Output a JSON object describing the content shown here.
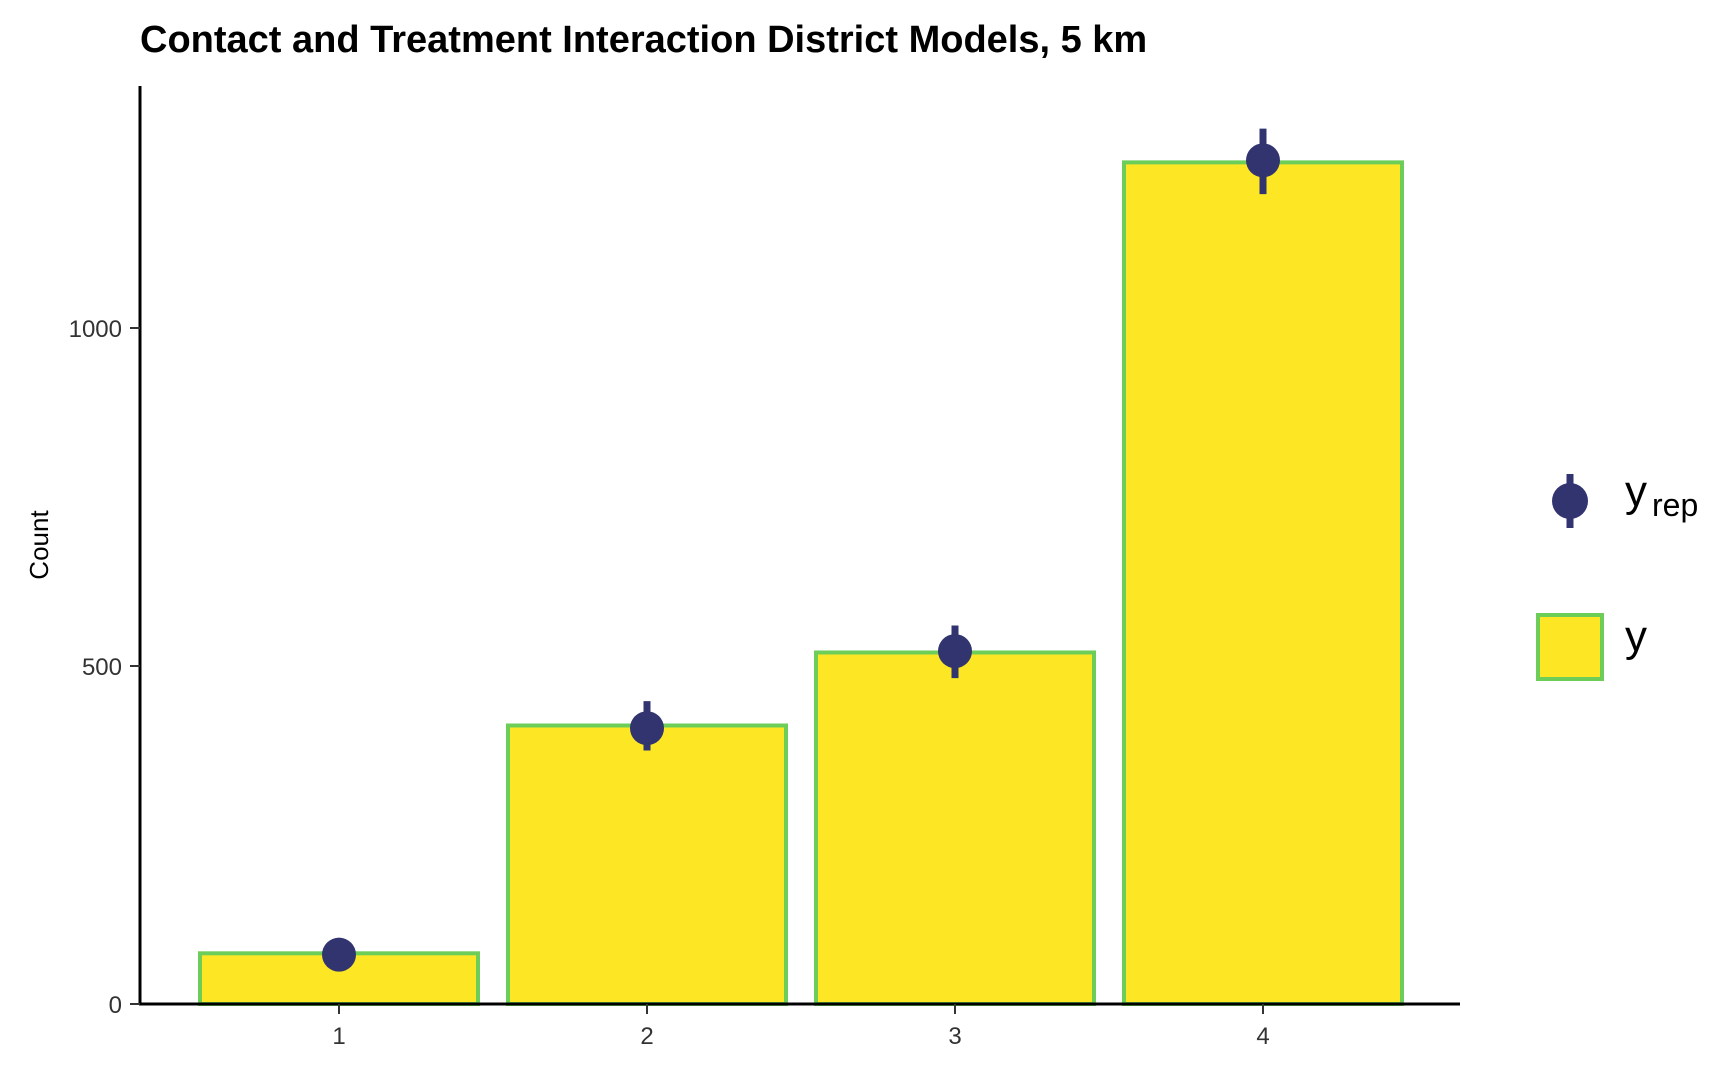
{
  "chart_data": {
    "type": "bar",
    "title": "Contact and Treatment Interaction District Models, 5 km",
    "xlabel": "",
    "ylabel": "Count",
    "categories": [
      "1",
      "2",
      "3",
      "4"
    ],
    "y_ticks": [
      0,
      500,
      1000
    ],
    "y_tick_labels": [
      "0",
      "500",
      "1000"
    ],
    "ylim": [
      0,
      1370
    ],
    "grid": false,
    "legend_position": "right",
    "series": [
      {
        "name": "y",
        "kind": "bar",
        "values": [
          75,
          412,
          520,
          1245
        ],
        "fill": "#FDE725",
        "stroke": "#6CCE59"
      },
      {
        "name": "y_rep",
        "kind": "point-interval",
        "values": [
          73,
          408,
          522,
          1248
        ],
        "lower": [
          73,
          375,
          482,
          1198
        ],
        "upper": [
          73,
          448,
          560,
          1295
        ],
        "color": "#31346F"
      }
    ],
    "legend": {
      "yrep_main": "y",
      "yrep_sub": "rep",
      "y": "y"
    }
  }
}
